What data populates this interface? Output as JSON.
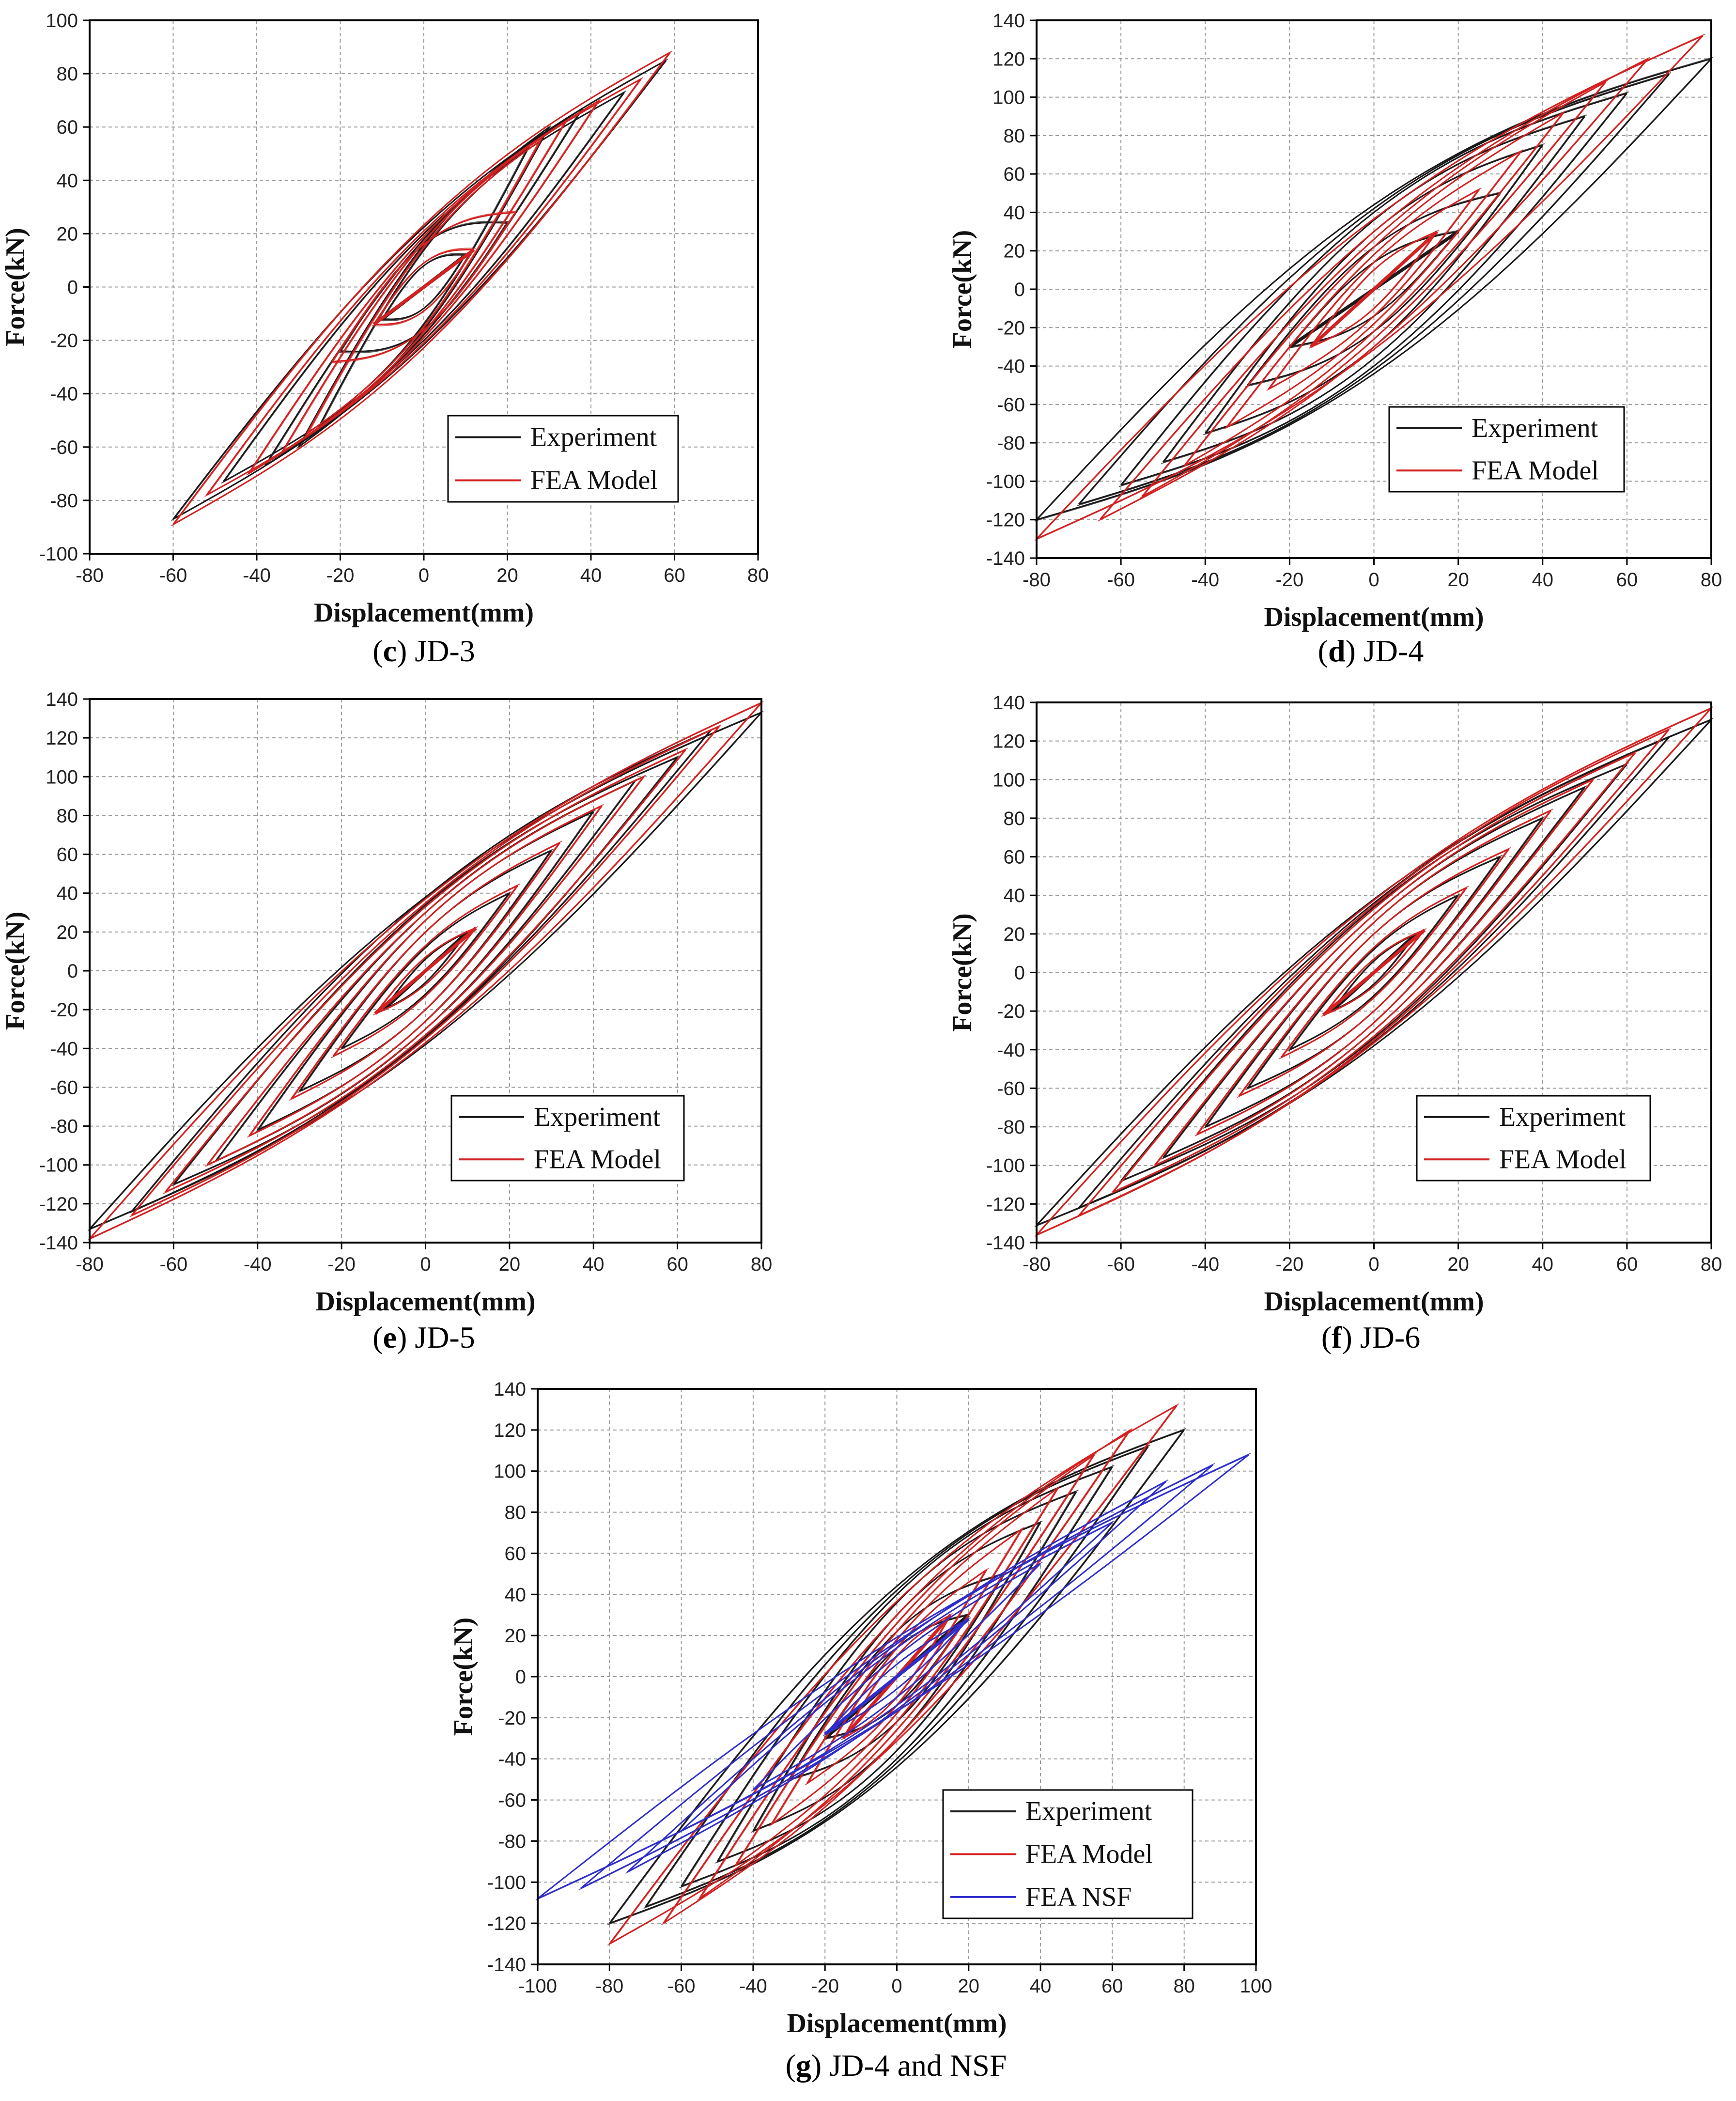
{
  "colors": {
    "experiment": "#1a1a1a",
    "fea_model": "#d42020",
    "fea_nsf": "#2e2ecc",
    "grid": "#9a9a9a",
    "axis": "#000000",
    "text": "#000000"
  },
  "chart_data": [
    {
      "id": "c",
      "type": "line",
      "caption_letter": "c",
      "caption_text": ") JD-3",
      "caption_open": "(",
      "xlabel": "Displacement(mm)",
      "ylabel": "Force(kN)",
      "xlim": [
        -80,
        80
      ],
      "ylim": [
        -100,
        100
      ],
      "xticks": [
        -80,
        -60,
        -40,
        -20,
        0,
        20,
        40,
        60,
        80
      ],
      "yticks": [
        -100,
        -80,
        -60,
        -40,
        -20,
        0,
        20,
        40,
        60,
        80,
        100
      ],
      "legend": [
        {
          "name": "Experiment",
          "color": "#1a1a1a"
        },
        {
          "name": "FEA Model",
          "color": "#d42020"
        }
      ],
      "series": [
        {
          "name": "Experiment",
          "color": "#1a1a1a",
          "loops": [
            [
              10,
              12,
              8
            ],
            [
              20,
              24,
              16
            ],
            [
              25,
              52,
              14
            ],
            [
              30,
              60,
              16
            ],
            [
              38,
              67,
              18
            ],
            [
              48,
              73,
              20
            ],
            [
              58,
              85,
              22
            ]
          ],
          "neg": [
            [
              -10,
              -12
            ],
            [
              -20,
              -24
            ],
            [
              -25,
              -52
            ],
            [
              -30,
              -60
            ],
            [
              -38,
              -67
            ],
            [
              -48,
              -73
            ],
            [
              -60,
              -87
            ]
          ]
        },
        {
          "name": "FEA Model",
          "color": "#d42020",
          "loops": [
            [
              12,
              14,
              9
            ],
            [
              22,
              28,
              16
            ],
            [
              28,
              55,
              15
            ],
            [
              34,
              62,
              17
            ],
            [
              42,
              70,
              19
            ],
            [
              52,
              78,
              21
            ],
            [
              59,
              88,
              23
            ]
          ],
          "neg": [
            [
              -12,
              -14
            ],
            [
              -22,
              -28
            ],
            [
              -28,
              -55
            ],
            [
              -34,
              -62
            ],
            [
              -42,
              -70
            ],
            [
              -52,
              -78
            ],
            [
              -60,
              -89
            ]
          ]
        }
      ]
    },
    {
      "id": "d",
      "type": "line",
      "caption_letter": "d",
      "caption_text": ") JD-4",
      "caption_open": "(",
      "xlabel": "Displacement(mm)",
      "ylabel": "Force(kN)",
      "xlim": [
        -80,
        80
      ],
      "ylim": [
        -140,
        140
      ],
      "xticks": [
        -80,
        -60,
        -40,
        -20,
        0,
        20,
        40,
        60,
        80
      ],
      "yticks": [
        -140,
        -120,
        -100,
        -80,
        -60,
        -40,
        -20,
        0,
        20,
        40,
        60,
        80,
        100,
        120,
        140
      ],
      "legend": [
        {
          "name": "Experiment",
          "color": "#1a1a1a"
        },
        {
          "name": "FEA Model",
          "color": "#d42020"
        }
      ],
      "series": [
        {
          "name": "Experiment",
          "color": "#1a1a1a",
          "loops": [
            [
              20,
              30,
              14
            ],
            [
              30,
              50,
              22
            ],
            [
              40,
              75,
              30
            ],
            [
              50,
              90,
              36
            ],
            [
              60,
              102,
              40
            ],
            [
              70,
              112,
              42
            ],
            [
              80,
              120,
              44
            ]
          ],
          "neg": [
            [
              -20,
              -30
            ],
            [
              -30,
              -50
            ],
            [
              -40,
              -75
            ],
            [
              -50,
              -90
            ],
            [
              -60,
              -102
            ],
            [
              -70,
              -112
            ],
            [
              -80,
              -120
            ]
          ]
        },
        {
          "name": "FEA Model",
          "color": "#d42020",
          "loops": [
            [
              15,
              30,
              10
            ],
            [
              25,
              52,
              14
            ],
            [
              35,
              72,
              18
            ],
            [
              45,
              92,
              22
            ],
            [
              55,
              108,
              26
            ],
            [
              65,
              120,
              30
            ],
            [
              78,
              132,
              34
            ]
          ],
          "neg": [
            [
              -15,
              -30
            ],
            [
              -25,
              -52
            ],
            [
              -35,
              -72
            ],
            [
              -45,
              -92
            ],
            [
              -55,
              -108
            ],
            [
              -65,
              -120
            ],
            [
              -80,
              -130
            ]
          ]
        }
      ]
    },
    {
      "id": "e",
      "type": "line",
      "caption_letter": "e",
      "caption_text": ") JD-5",
      "caption_open": "(",
      "xlabel": "Displacement(mm)",
      "ylabel": "Force(kN)",
      "xlim": [
        -80,
        80
      ],
      "ylim": [
        -140,
        140
      ],
      "xticks": [
        -80,
        -60,
        -40,
        -20,
        0,
        20,
        40,
        60,
        80
      ],
      "yticks": [
        -140,
        -120,
        -100,
        -80,
        -60,
        -40,
        -20,
        0,
        20,
        40,
        60,
        80,
        100,
        120,
        140
      ],
      "legend": [
        {
          "name": "Experiment",
          "color": "#1a1a1a"
        },
        {
          "name": "FEA Model",
          "color": "#d42020"
        }
      ],
      "series": [
        {
          "name": "Experiment",
          "color": "#1a1a1a",
          "loops": [
            [
              10,
              20,
              6
            ],
            [
              20,
              40,
              12
            ],
            [
              30,
              62,
              20
            ],
            [
              40,
              82,
              26
            ],
            [
              50,
              98,
              30
            ],
            [
              60,
              110,
              34
            ],
            [
              68,
              124,
              36
            ],
            [
              80,
              133,
              38
            ]
          ],
          "neg": [
            [
              -10,
              -20
            ],
            [
              -20,
              -40
            ],
            [
              -30,
              -62
            ],
            [
              -40,
              -82
            ],
            [
              -50,
              -98
            ],
            [
              -60,
              -110
            ],
            [
              -70,
              -124
            ],
            [
              -80,
              -133
            ]
          ]
        },
        {
          "name": "FEA Model",
          "color": "#d42020",
          "loops": [
            [
              12,
              22,
              7
            ],
            [
              22,
              44,
              13
            ],
            [
              32,
              66,
              20
            ],
            [
              42,
              85,
              26
            ],
            [
              52,
              100,
              30
            ],
            [
              62,
              114,
              33
            ],
            [
              70,
              126,
              35
            ],
            [
              80,
              138,
              37
            ]
          ],
          "neg": [
            [
              -12,
              -22
            ],
            [
              -22,
              -44
            ],
            [
              -32,
              -66
            ],
            [
              -42,
              -85
            ],
            [
              -52,
              -100
            ],
            [
              -62,
              -114
            ],
            [
              -70,
              -126
            ],
            [
              -80,
              -138
            ]
          ]
        }
      ]
    },
    {
      "id": "f",
      "type": "line",
      "caption_letter": "f",
      "caption_text": ") JD-6",
      "caption_open": "(",
      "xlabel": "Displacement(mm)",
      "ylabel": "Force(kN)",
      "xlim": [
        -80,
        80
      ],
      "ylim": [
        -140,
        140
      ],
      "xticks": [
        -80,
        -60,
        -40,
        -20,
        0,
        20,
        40,
        60,
        80
      ],
      "yticks": [
        -140,
        -120,
        -100,
        -80,
        -60,
        -40,
        -20,
        0,
        20,
        40,
        60,
        80,
        100,
        120,
        140
      ],
      "legend": [
        {
          "name": "Experiment",
          "color": "#1a1a1a"
        },
        {
          "name": "FEA Model",
          "color": "#d42020"
        }
      ],
      "series": [
        {
          "name": "Experiment",
          "color": "#1a1a1a",
          "loops": [
            [
              10,
              20,
              6
            ],
            [
              20,
              40,
              12
            ],
            [
              30,
              60,
              20
            ],
            [
              40,
              80,
              26
            ],
            [
              50,
              96,
              30
            ],
            [
              60,
              108,
              34
            ],
            [
              70,
              122,
              36
            ],
            [
              80,
              131,
              38
            ]
          ],
          "neg": [
            [
              -10,
              -20
            ],
            [
              -20,
              -40
            ],
            [
              -30,
              -60
            ],
            [
              -40,
              -80
            ],
            [
              -50,
              -96
            ],
            [
              -60,
              -108
            ],
            [
              -70,
              -122
            ],
            [
              -80,
              -131
            ]
          ]
        },
        {
          "name": "FEA Model",
          "color": "#d42020",
          "loops": [
            [
              12,
              22,
              7
            ],
            [
              22,
              44,
              13
            ],
            [
              32,
              64,
              20
            ],
            [
              42,
              84,
              26
            ],
            [
              52,
              100,
              30
            ],
            [
              62,
              114,
              33
            ],
            [
              70,
              126,
              35
            ],
            [
              80,
              137,
              37
            ]
          ],
          "neg": [
            [
              -12,
              -22
            ],
            [
              -22,
              -44
            ],
            [
              -32,
              -64
            ],
            [
              -42,
              -84
            ],
            [
              -52,
              -100
            ],
            [
              -62,
              -114
            ],
            [
              -70,
              -126
            ],
            [
              -80,
              -136
            ]
          ]
        }
      ]
    },
    {
      "id": "g",
      "type": "line",
      "caption_letter": "g",
      "caption_text": ") JD-4 and NSF",
      "caption_open": "(",
      "xlabel": "Displacement(mm)",
      "ylabel": "Force(kN)",
      "xlim": [
        -100,
        100
      ],
      "ylim": [
        -140,
        140
      ],
      "xticks": [
        -100,
        -80,
        -60,
        -40,
        -20,
        0,
        20,
        40,
        60,
        80,
        100
      ],
      "yticks": [
        -140,
        -120,
        -100,
        -80,
        -60,
        -40,
        -20,
        0,
        20,
        40,
        60,
        80,
        100,
        120,
        140
      ],
      "legend": [
        {
          "name": "Experiment",
          "color": "#1a1a1a"
        },
        {
          "name": "FEA Model",
          "color": "#d42020"
        },
        {
          "name": "FEA NSF",
          "color": "#2e2ecc"
        }
      ],
      "series": [
        {
          "name": "Experiment",
          "color": "#1a1a1a",
          "loops": [
            [
              20,
              30,
              14
            ],
            [
              30,
              50,
              22
            ],
            [
              40,
              75,
              30
            ],
            [
              50,
              90,
              36
            ],
            [
              60,
              102,
              40
            ],
            [
              70,
              112,
              42
            ],
            [
              80,
              120,
              44
            ]
          ],
          "neg": [
            [
              -20,
              -30
            ],
            [
              -30,
              -50
            ],
            [
              -40,
              -75
            ],
            [
              -50,
              -90
            ],
            [
              -60,
              -102
            ],
            [
              -70,
              -112
            ],
            [
              -80,
              -120
            ]
          ]
        },
        {
          "name": "FEA Model",
          "color": "#d42020",
          "loops": [
            [
              15,
              30,
              10
            ],
            [
              25,
              52,
              14
            ],
            [
              35,
              72,
              18
            ],
            [
              45,
              92,
              22
            ],
            [
              55,
              108,
              26
            ],
            [
              65,
              120,
              30
            ],
            [
              78,
              132,
              34
            ]
          ],
          "neg": [
            [
              -15,
              -30
            ],
            [
              -25,
              -52
            ],
            [
              -35,
              -72
            ],
            [
              -45,
              -92
            ],
            [
              -55,
              -108
            ],
            [
              -65,
              -120
            ],
            [
              -80,
              -130
            ]
          ]
        },
        {
          "name": "FEA NSF",
          "color": "#2e2ecc",
          "loops": [
            [
              20,
              28,
              6
            ],
            [
              40,
              55,
              10
            ],
            [
              60,
              75,
              14
            ],
            [
              75,
              95,
              16
            ],
            [
              88,
              103,
              17
            ],
            [
              98,
              108,
              18
            ]
          ],
          "neg": [
            [
              -20,
              -28
            ],
            [
              -40,
              -55
            ],
            [
              -60,
              -75
            ],
            [
              -75,
              -95
            ],
            [
              -88,
              -103
            ],
            [
              -100,
              -108
            ]
          ]
        }
      ]
    }
  ]
}
